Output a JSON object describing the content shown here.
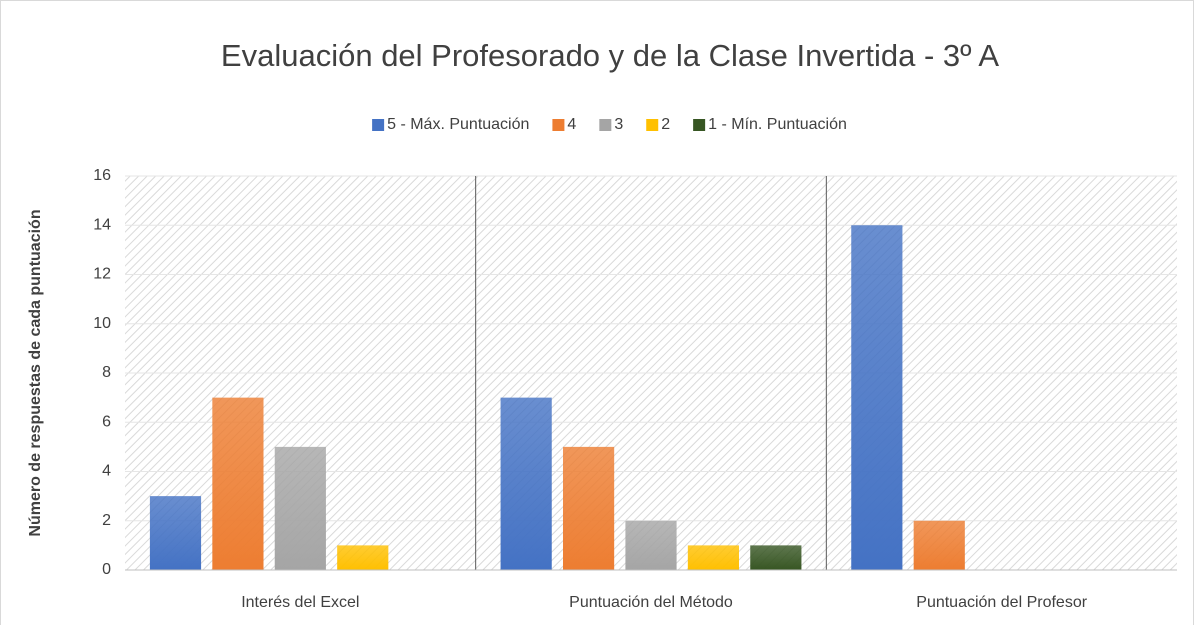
{
  "chart_data": {
    "type": "bar",
    "title": "Evaluación del Profesorado y de la Clase Invertida - 3º A",
    "y_label": "Número de respuestas de cada puntuación",
    "categories": [
      "Interés del Excel",
      "Puntuación del Método",
      "Puntuación del Profesor"
    ],
    "series": [
      {
        "name": "5 - Máx. Puntuación",
        "color": "#4472c4",
        "values": [
          3,
          7,
          14
        ]
      },
      {
        "name": "4",
        "color": "#ed7d31",
        "values": [
          7,
          5,
          2
        ]
      },
      {
        "name": "3",
        "color": "#a5a5a5",
        "values": [
          5,
          2,
          0
        ]
      },
      {
        "name": "2",
        "color": "#ffc000",
        "values": [
          1,
          1,
          0
        ]
      },
      {
        "name": "1 - Mín. Puntuación",
        "color": "#375623",
        "values": [
          0,
          1,
          0
        ]
      }
    ],
    "ylim": [
      0,
      16
    ],
    "yticks": [
      0,
      2,
      4,
      6,
      8,
      10,
      12,
      14,
      16
    ],
    "grid": true,
    "legend": "top"
  }
}
